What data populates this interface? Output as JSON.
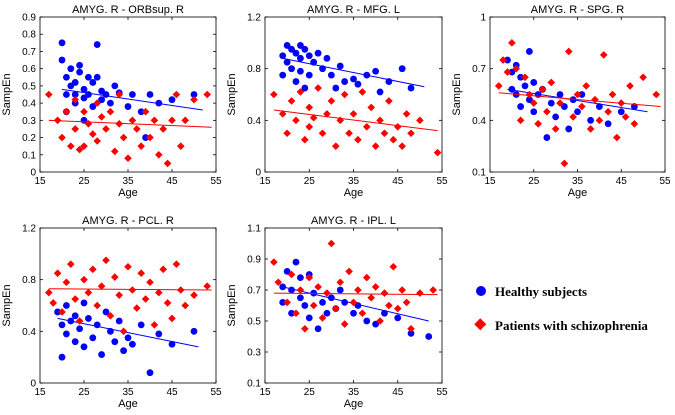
{
  "legend": {
    "entries": [
      {
        "label": "Healthy subjects",
        "color": "#0000ff",
        "marker": "circle"
      },
      {
        "label": "Patients with schizophrenia",
        "color": "#ff0000",
        "marker": "diamond"
      }
    ]
  },
  "chart_data": [
    {
      "type": "scatter",
      "title": "AMYG. R - ORBsup. R",
      "xlabel": "Age",
      "ylabel": "SampEn",
      "xlim": [
        15,
        55
      ],
      "ylim": [
        0,
        0.9
      ],
      "xticks": [
        "15",
        "25",
        "35",
        "45",
        "55"
      ],
      "yticks": [
        "0",
        "0.1",
        "0.2",
        "0.3",
        "0.4",
        "0.5",
        "0.6",
        "0.7",
        "0.8",
        "0.9"
      ],
      "series": [
        {
          "name": "Healthy subjects",
          "color": "#0000ff",
          "marker": "circle",
          "x": [
            20,
            20,
            21,
            21,
            21,
            22,
            22,
            23,
            23,
            23,
            24,
            24,
            25,
            25,
            25,
            26,
            26,
            27,
            27,
            28,
            28,
            29,
            29,
            30,
            31,
            32,
            33,
            35,
            36,
            38,
            39,
            40,
            42,
            45,
            50
          ],
          "y": [
            0.75,
            0.65,
            0.55,
            0.45,
            0.35,
            0.6,
            0.5,
            0.52,
            0.45,
            0.4,
            0.58,
            0.62,
            0.48,
            0.43,
            0.3,
            0.55,
            0.45,
            0.52,
            0.38,
            0.74,
            0.55,
            0.47,
            0.42,
            0.45,
            0.4,
            0.5,
            0.46,
            0.38,
            0.45,
            0.35,
            0.2,
            0.45,
            0.4,
            0.42,
            0.45
          ],
          "trend": {
            "x": [
              20,
              52
            ],
            "y": [
              0.48,
              0.36
            ]
          }
        },
        {
          "name": "Patients with schizophrenia",
          "color": "#ff0000",
          "marker": "diamond",
          "x": [
            17,
            19,
            20,
            21,
            22,
            23,
            23,
            24,
            25,
            25,
            26,
            27,
            28,
            28,
            29,
            30,
            31,
            32,
            33,
            33,
            34,
            35,
            36,
            37,
            38,
            39,
            40,
            41,
            42,
            43,
            44,
            45,
            46,
            47,
            48,
            50,
            53
          ],
          "y": [
            0.45,
            0.3,
            0.2,
            0.35,
            0.15,
            0.25,
            0.42,
            0.13,
            0.35,
            0.15,
            0.28,
            0.22,
            0.18,
            0.4,
            0.32,
            0.25,
            0.35,
            0.12,
            0.28,
            0.45,
            0.2,
            0.08,
            0.3,
            0.25,
            0.15,
            0.35,
            0.2,
            0.3,
            0.1,
            0.25,
            0.05,
            0.3,
            0.45,
            0.15,
            0.3,
            0.42,
            0.45
          ],
          "trend": {
            "x": [
              17,
              54
            ],
            "y": [
              0.3,
              0.26
            ]
          }
        }
      ]
    },
    {
      "type": "scatter",
      "title": "AMYG. R - MFG. L",
      "xlabel": "Age",
      "ylabel": "SampEn",
      "xlim": [
        15,
        55
      ],
      "ylim": [
        0,
        1.2
      ],
      "xticks": [
        "15",
        "25",
        "35",
        "45",
        "55"
      ],
      "yticks": [
        "0",
        "0.4",
        "0.8",
        "1.2"
      ],
      "series": [
        {
          "name": "Healthy subjects",
          "color": "#0000ff",
          "marker": "circle",
          "x": [
            19,
            19,
            20,
            20,
            21,
            21,
            22,
            22,
            23,
            23,
            23,
            24,
            24,
            25,
            25,
            26,
            27,
            28,
            29,
            30,
            31,
            32,
            33,
            35,
            36,
            38,
            40,
            41,
            43,
            46,
            48
          ],
          "y": [
            0.9,
            0.75,
            0.98,
            0.85,
            0.95,
            0.8,
            0.92,
            0.7,
            0.98,
            0.88,
            0.78,
            0.95,
            0.65,
            0.9,
            0.75,
            0.85,
            0.92,
            0.8,
            0.88,
            0.75,
            0.65,
            0.82,
            0.7,
            0.72,
            0.68,
            0.75,
            0.78,
            0.62,
            0.7,
            0.8,
            0.65
          ],
          "trend": {
            "x": [
              19,
              51
            ],
            "y": [
              0.88,
              0.66
            ]
          }
        },
        {
          "name": "Patients with schizophrenia",
          "color": "#ff0000",
          "marker": "diamond",
          "x": [
            17,
            19,
            20,
            21,
            22,
            23,
            24,
            25,
            25,
            26,
            27,
            28,
            29,
            30,
            31,
            32,
            33,
            34,
            35,
            36,
            37,
            38,
            39,
            40,
            41,
            42,
            43,
            44,
            45,
            46,
            47,
            48,
            50,
            54
          ],
          "y": [
            0.6,
            0.45,
            0.3,
            0.55,
            0.4,
            0.62,
            0.25,
            0.5,
            0.35,
            0.42,
            0.65,
            0.3,
            0.45,
            0.55,
            0.2,
            0.4,
            0.6,
            0.3,
            0.45,
            0.25,
            0.62,
            0.35,
            0.5,
            0.2,
            0.4,
            0.3,
            0.55,
            0.25,
            0.35,
            0.2,
            0.45,
            0.3,
            0.4,
            0.15
          ],
          "trend": {
            "x": [
              17,
              54
            ],
            "y": [
              0.48,
              0.32
            ]
          }
        }
      ]
    },
    {
      "type": "scatter",
      "title": "AMYG. R - SPG. R",
      "xlabel": "Age",
      "ylabel": "SampEn",
      "xlim": [
        15,
        55
      ],
      "ylim": [
        0.1,
        1.0
      ],
      "xticks": [
        "15",
        "25",
        "35",
        "45",
        "55"
      ],
      "yticks": [
        "0.1",
        "0.4",
        "0.7",
        "1"
      ],
      "series": [
        {
          "name": "Healthy subjects",
          "color": "#0000ff",
          "marker": "circle",
          "x": [
            19,
            20,
            20,
            21,
            21,
            22,
            22,
            23,
            24,
            24,
            25,
            25,
            26,
            27,
            28,
            29,
            30,
            31,
            32,
            33,
            34,
            35,
            36,
            38,
            40,
            42,
            45,
            48
          ],
          "y": [
            0.75,
            0.68,
            0.58,
            0.72,
            0.55,
            0.65,
            0.48,
            0.6,
            0.8,
            0.52,
            0.62,
            0.45,
            0.55,
            0.58,
            0.3,
            0.5,
            0.42,
            0.55,
            0.48,
            0.35,
            0.52,
            0.45,
            0.55,
            0.4,
            0.48,
            0.38,
            0.45,
            0.48
          ],
          "trend": {
            "x": [
              19,
              51
            ],
            "y": [
              0.58,
              0.45
            ]
          }
        },
        {
          "name": "Patients with schizophrenia",
          "color": "#ff0000",
          "marker": "diamond",
          "x": [
            17,
            18,
            19,
            20,
            21,
            22,
            23,
            24,
            25,
            26,
            27,
            28,
            29,
            30,
            31,
            32,
            33,
            34,
            35,
            36,
            37,
            38,
            39,
            40,
            41,
            42,
            43,
            44,
            45,
            46,
            47,
            48,
            50,
            53
          ],
          "y": [
            0.6,
            0.75,
            0.68,
            0.85,
            0.7,
            0.4,
            0.65,
            0.55,
            0.5,
            0.38,
            0.58,
            0.45,
            0.62,
            0.35,
            0.5,
            0.15,
            0.8,
            0.42,
            0.55,
            0.48,
            0.6,
            0.35,
            0.52,
            0.4,
            0.78,
            0.45,
            0.55,
            0.3,
            0.5,
            0.42,
            0.6,
            0.38,
            0.65,
            0.55
          ],
          "trend": {
            "x": [
              17,
              54
            ],
            "y": [
              0.56,
              0.48
            ]
          }
        }
      ]
    },
    {
      "type": "scatter",
      "title": "AMYG. R - PCL. R",
      "xlabel": "Age",
      "ylabel": "SampEn",
      "xlim": [
        15,
        55
      ],
      "ylim": [
        0,
        1.2
      ],
      "xticks": [
        "15",
        "25",
        "35",
        "45",
        "55"
      ],
      "yticks": [
        "0",
        "0.4",
        "0.8",
        "1.2"
      ],
      "series": [
        {
          "name": "Healthy subjects",
          "color": "#0000ff",
          "marker": "circle",
          "x": [
            19,
            20,
            20,
            21,
            21,
            22,
            23,
            23,
            24,
            25,
            25,
            26,
            27,
            28,
            29,
            30,
            31,
            32,
            33,
            34,
            35,
            36,
            38,
            40,
            42,
            45,
            50
          ],
          "y": [
            0.55,
            0.45,
            0.2,
            0.6,
            0.38,
            0.48,
            0.32,
            0.52,
            0.42,
            0.62,
            0.28,
            0.5,
            0.35,
            0.45,
            0.22,
            0.55,
            0.4,
            0.32,
            0.48,
            0.25,
            0.35,
            0.3,
            0.45,
            0.08,
            0.38,
            0.3,
            0.4
          ],
          "trend": {
            "x": [
              19,
              51
            ],
            "y": [
              0.5,
              0.28
            ]
          }
        },
        {
          "name": "Patients with schizophrenia",
          "color": "#ff0000",
          "marker": "diamond",
          "x": [
            17,
            18,
            19,
            20,
            21,
            22,
            23,
            24,
            25,
            26,
            27,
            28,
            29,
            30,
            31,
            32,
            33,
            34,
            35,
            36,
            37,
            38,
            39,
            40,
            41,
            42,
            43,
            44,
            45,
            46,
            47,
            48,
            50,
            53
          ],
          "y": [
            0.7,
            0.62,
            0.85,
            0.55,
            0.78,
            0.92,
            0.65,
            0.48,
            0.8,
            0.7,
            0.88,
            0.6,
            0.75,
            0.95,
            0.52,
            0.82,
            0.68,
            0.4,
            0.9,
            0.72,
            0.58,
            0.85,
            0.65,
            0.78,
            0.45,
            0.7,
            0.88,
            0.62,
            0.5,
            0.92,
            0.72,
            0.6,
            0.68,
            0.75
          ],
          "trend": {
            "x": [
              17,
              54
            ],
            "y": [
              0.73,
              0.72
            ]
          }
        }
      ]
    },
    {
      "type": "scatter",
      "title": "AMYG. R - IPL. L",
      "xlabel": "Age",
      "ylabel": "SampEn",
      "xlim": [
        15,
        55
      ],
      "ylim": [
        0.1,
        1.1
      ],
      "xticks": [
        "15",
        "25",
        "35",
        "45",
        "55"
      ],
      "yticks": [
        "0.1",
        "0.3",
        "0.5",
        "0.7",
        "0.9",
        "1.1"
      ],
      "series": [
        {
          "name": "Healthy subjects",
          "color": "#0000ff",
          "marker": "circle",
          "x": [
            19,
            19,
            20,
            21,
            21,
            22,
            23,
            23,
            24,
            25,
            25,
            26,
            27,
            28,
            29,
            30,
            31,
            32,
            33,
            35,
            36,
            38,
            40,
            42,
            45,
            48,
            52
          ],
          "y": [
            0.72,
            0.62,
            0.82,
            0.55,
            0.7,
            0.88,
            0.65,
            0.78,
            0.6,
            0.8,
            0.52,
            0.68,
            0.45,
            0.62,
            0.55,
            0.65,
            0.58,
            0.7,
            0.62,
            0.55,
            0.6,
            0.5,
            0.48,
            0.55,
            0.52,
            0.42,
            0.4
          ],
          "trend": {
            "x": [
              19,
              52
            ],
            "y": [
              0.72,
              0.5
            ]
          }
        },
        {
          "name": "Patients with schizophrenia",
          "color": "#ff0000",
          "marker": "diamond",
          "x": [
            17,
            18,
            20,
            21,
            22,
            23,
            24,
            25,
            26,
            27,
            28,
            29,
            30,
            31,
            32,
            33,
            34,
            35,
            36,
            37,
            38,
            39,
            40,
            41,
            42,
            43,
            44,
            45,
            46,
            47,
            48,
            50,
            53
          ],
          "y": [
            0.88,
            0.75,
            0.62,
            0.8,
            0.55,
            0.7,
            0.45,
            0.78,
            0.6,
            0.72,
            0.52,
            0.68,
            1.0,
            0.58,
            0.75,
            0.48,
            0.82,
            0.62,
            0.7,
            0.55,
            0.78,
            0.65,
            0.72,
            0.5,
            0.68,
            0.6,
            0.85,
            0.58,
            0.7,
            0.62,
            0.45,
            0.68,
            0.7
          ],
          "trend": {
            "x": [
              17,
              54
            ],
            "y": [
              0.68,
              0.67
            ]
          }
        }
      ]
    }
  ]
}
